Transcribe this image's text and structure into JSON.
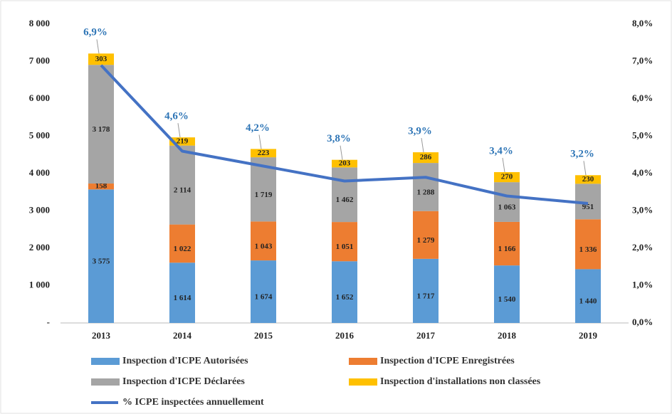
{
  "chart_data": {
    "type": "bar",
    "stacked": true,
    "categories": [
      "2013",
      "2014",
      "2015",
      "2016",
      "2017",
      "2018",
      "2019"
    ],
    "series": [
      {
        "name": "Inspection d'ICPE Autorisées",
        "color": "#5b9bd5",
        "values": [
          3575,
          1614,
          1674,
          1652,
          1717,
          1540,
          1440
        ],
        "value_labels": [
          "3 575",
          "1 614",
          "1 674",
          "1 652",
          "1 717",
          "1 540",
          "1 440"
        ]
      },
      {
        "name": "Inspection d'ICPE Enregistrées",
        "color": "#ed7d31",
        "values": [
          158,
          1022,
          1043,
          1051,
          1279,
          1166,
          1336
        ],
        "value_labels": [
          "158",
          "1 022",
          "1 043",
          "1 051",
          "1 279",
          "1 166",
          "1 336"
        ]
      },
      {
        "name": "Inspection d'ICPE Déclarées",
        "color": "#a5a5a5",
        "values": [
          3178,
          2114,
          1719,
          1462,
          1288,
          1063,
          951
        ],
        "value_labels": [
          "3 178",
          "2 114",
          "1 719",
          "1 462",
          "1 288",
          "1 063",
          "951"
        ]
      },
      {
        "name": "Inspection d'installations non classées",
        "color": "#ffc000",
        "values": [
          303,
          219,
          223,
          203,
          286,
          270,
          230
        ],
        "value_labels": [
          "303",
          "219",
          "223",
          "203",
          "286",
          "270",
          "230"
        ]
      },
      {
        "name": "% ICPE inspectées annuellement",
        "color": "#4472c4",
        "type": "line",
        "axis": "y2",
        "values": [
          6.9,
          4.6,
          4.2,
          3.8,
          3.9,
          3.4,
          3.2
        ],
        "value_labels": [
          "6,9%",
          "4,6%",
          "4,2%",
          "3,8%",
          "3,9%",
          "3,4%",
          "3,2%"
        ]
      }
    ],
    "ylim": [
      0,
      8000
    ],
    "yticks": [
      {
        "value": 0,
        "label": "-"
      },
      {
        "value": 1000,
        "label": "1 000"
      },
      {
        "value": 2000,
        "label": "2 000"
      },
      {
        "value": 3000,
        "label": "3 000"
      },
      {
        "value": 4000,
        "label": "4 000"
      },
      {
        "value": 5000,
        "label": "5 000"
      },
      {
        "value": 6000,
        "label": "6 000"
      },
      {
        "value": 7000,
        "label": "7 000"
      },
      {
        "value": 8000,
        "label": "8 000"
      }
    ],
    "y2lim": [
      0,
      8
    ],
    "y2ticks": [
      {
        "value": 0,
        "label": "0,0%"
      },
      {
        "value": 1,
        "label": "1,0%"
      },
      {
        "value": 2,
        "label": "2,0%"
      },
      {
        "value": 3,
        "label": "3,0%"
      },
      {
        "value": 4,
        "label": "4,0%"
      },
      {
        "value": 5,
        "label": "5,0%"
      },
      {
        "value": 6,
        "label": "6,0%"
      },
      {
        "value": 7,
        "label": "7,0%"
      },
      {
        "value": 8,
        "label": "8,0%"
      }
    ],
    "grid": false,
    "legend": "bottom"
  }
}
